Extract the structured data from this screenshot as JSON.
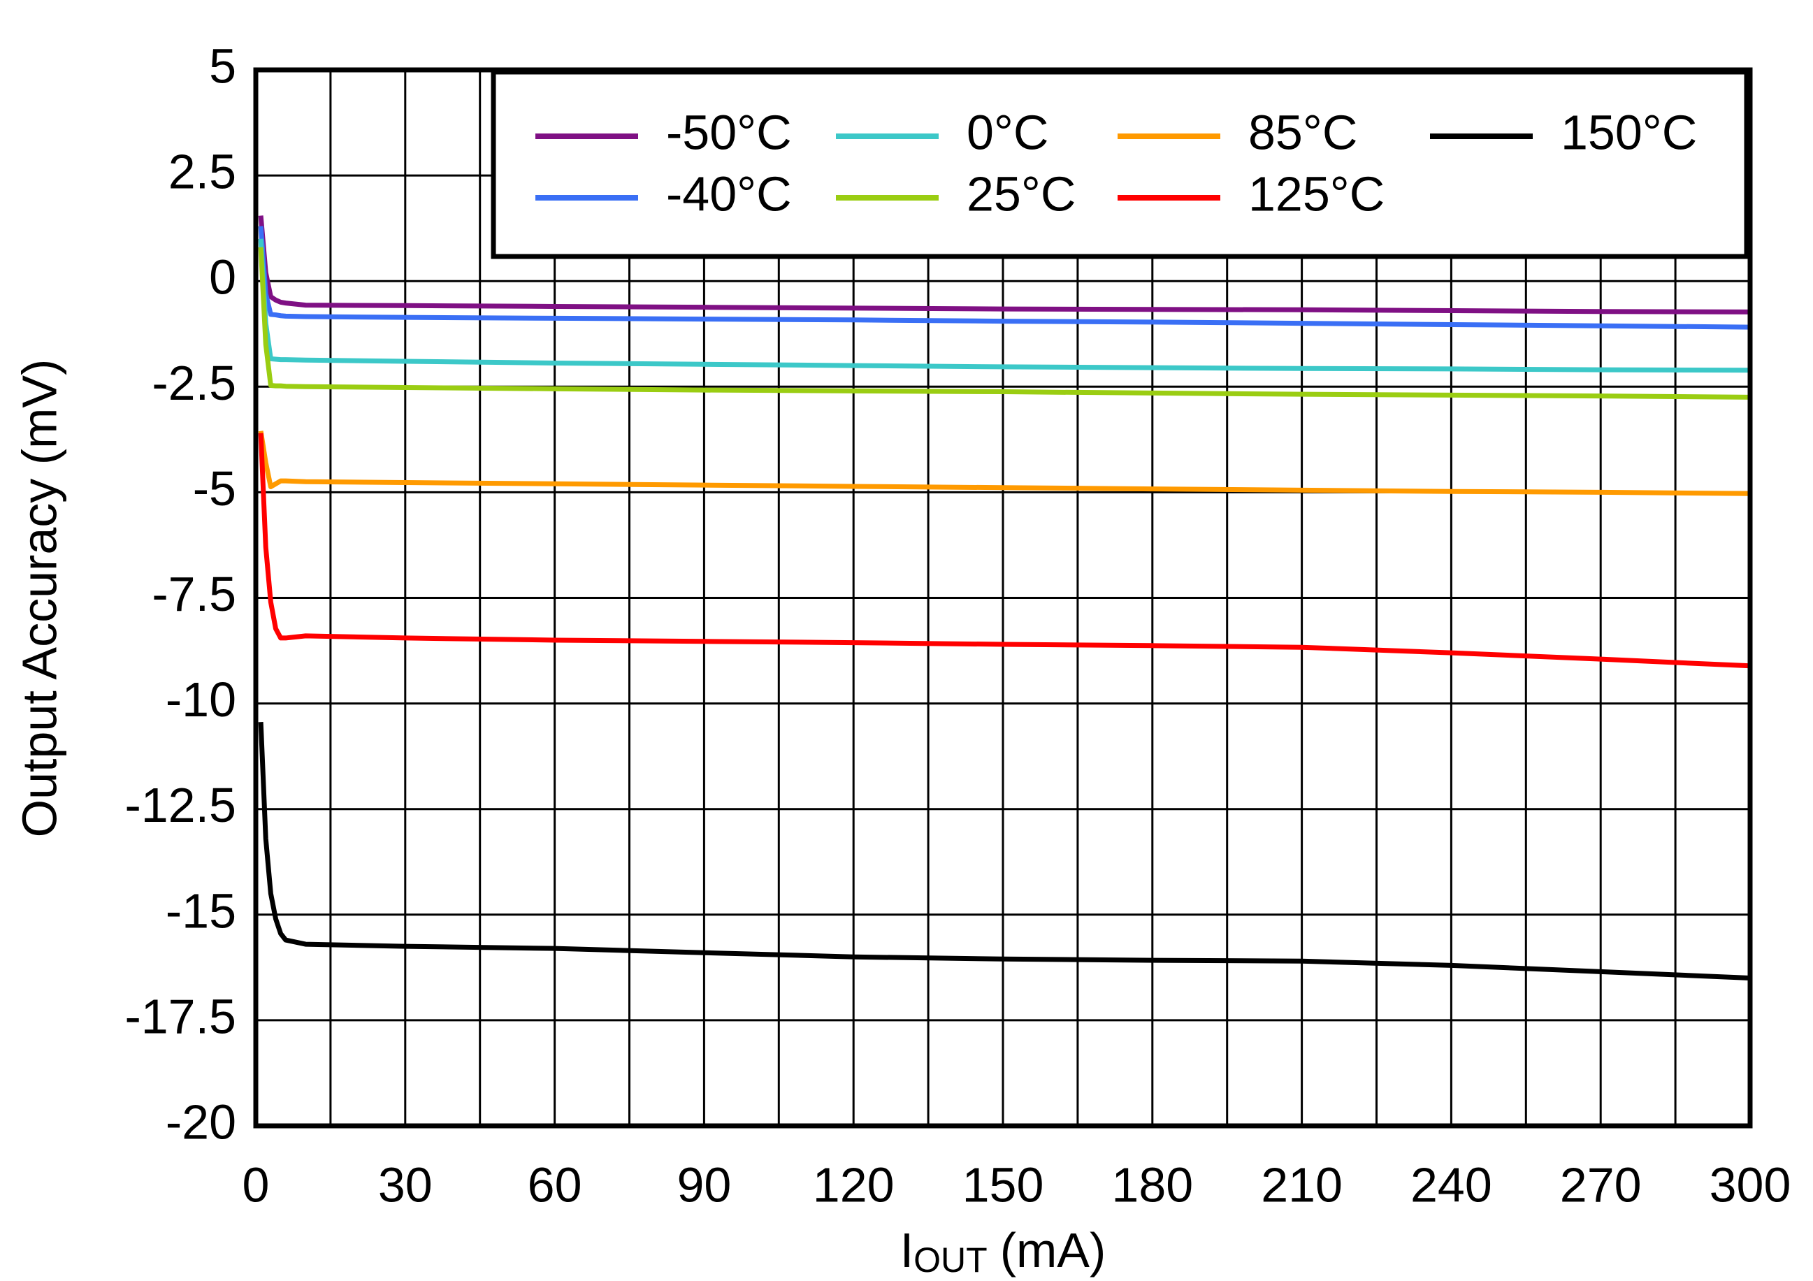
{
  "chart_data": {
    "type": "line",
    "ylabel": "Output Accuracy (mV)",
    "xlabel": {
      "text": "I",
      "subscript": "OUT",
      "unit": "(mA)"
    },
    "xlim": [
      0,
      300
    ],
    "xticks": [
      0,
      30,
      60,
      90,
      120,
      150,
      180,
      210,
      240,
      270,
      300
    ],
    "x_minor_grid": [
      15,
      45,
      75,
      105,
      135,
      165,
      195,
      225,
      255,
      285
    ],
    "ylim": [
      -20,
      5
    ],
    "yticks": [
      -20,
      -17.5,
      -15,
      -12.5,
      -10,
      -7.5,
      -5,
      -2.5,
      0,
      2.5,
      5
    ],
    "grid": true,
    "legend": "top-right",
    "x": [
      1,
      2,
      3,
      4,
      5,
      6,
      10,
      30,
      60,
      90,
      120,
      150,
      180,
      210,
      240,
      270,
      300
    ],
    "series": [
      {
        "name": "-50°C",
        "color": "#7f1084",
        "values": [
          1.55,
          0.2,
          -0.37,
          -0.45,
          -0.5,
          -0.52,
          -0.57,
          -0.58,
          -0.6,
          -0.62,
          -0.64,
          -0.66,
          -0.67,
          -0.68,
          -0.7,
          -0.72,
          -0.73
        ]
      },
      {
        "name": "-40°C",
        "color": "#3a6ff5",
        "values": [
          1.3,
          -0.3,
          -0.79,
          -0.8,
          -0.82,
          -0.83,
          -0.84,
          -0.86,
          -0.88,
          -0.9,
          -0.92,
          -0.95,
          -0.97,
          -1.0,
          -1.03,
          -1.06,
          -1.09
        ]
      },
      {
        "name": "0°C",
        "color": "#3cc8c8",
        "values": [
          1.0,
          -1.0,
          -1.84,
          -1.85,
          -1.86,
          -1.86,
          -1.87,
          -1.9,
          -1.94,
          -1.97,
          -2.0,
          -2.03,
          -2.05,
          -2.07,
          -2.08,
          -2.1,
          -2.11
        ]
      },
      {
        "name": "25°C",
        "color": "#9acd12",
        "values": [
          0.8,
          -1.5,
          -2.47,
          -2.48,
          -2.48,
          -2.49,
          -2.5,
          -2.52,
          -2.55,
          -2.58,
          -2.6,
          -2.62,
          -2.65,
          -2.68,
          -2.7,
          -2.72,
          -2.75
        ]
      },
      {
        "name": "85°C",
        "color": "#ff9a00",
        "values": [
          -3.55,
          -4.3,
          -4.87,
          -4.8,
          -4.73,
          -4.73,
          -4.75,
          -4.77,
          -4.8,
          -4.83,
          -4.86,
          -4.89,
          -4.92,
          -4.95,
          -4.98,
          -5.0,
          -5.03
        ]
      },
      {
        "name": "125°C",
        "color": "#ff0000",
        "values": [
          -3.6,
          -6.3,
          -7.6,
          -8.23,
          -8.45,
          -8.45,
          -8.4,
          -8.45,
          -8.5,
          -8.53,
          -8.56,
          -8.6,
          -8.63,
          -8.67,
          -8.8,
          -8.95,
          -9.11
        ]
      },
      {
        "name": "150°C",
        "color": "#000000",
        "values": [
          -10.44,
          -13.2,
          -14.5,
          -15.1,
          -15.45,
          -15.6,
          -15.7,
          -15.75,
          -15.8,
          -15.9,
          -16.0,
          -16.05,
          -16.08,
          -16.1,
          -16.2,
          -16.35,
          -16.5
        ]
      }
    ]
  }
}
